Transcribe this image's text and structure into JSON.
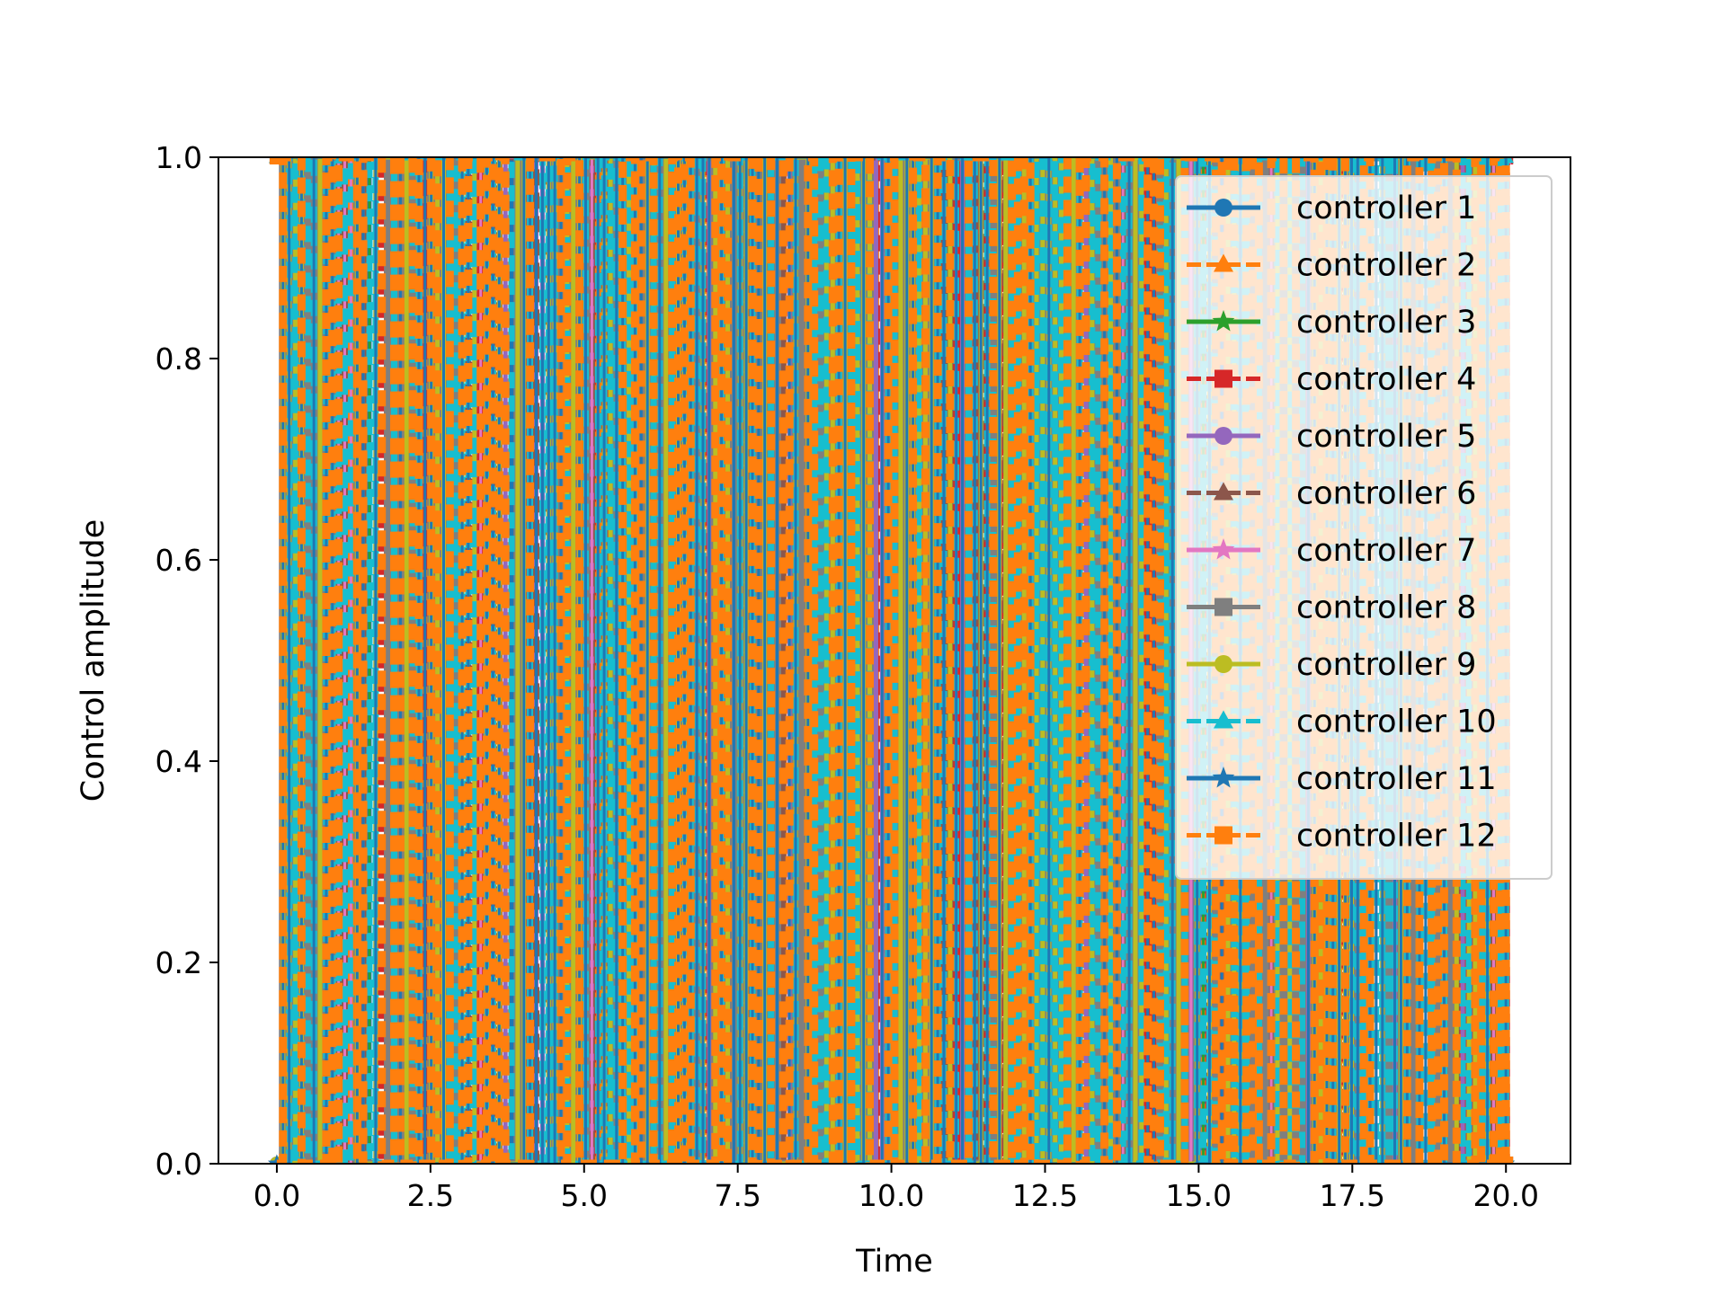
{
  "chart_data": {
    "type": "line",
    "title": "",
    "xlabel": "Time",
    "ylabel": "Control amplitude",
    "xlim": [
      -0.95,
      21.05
    ],
    "ylim": [
      0.0,
      1.0
    ],
    "xticks": [
      0.0,
      2.5,
      5.0,
      7.5,
      10.0,
      12.5,
      15.0,
      17.5,
      20.0
    ],
    "xtick_labels": [
      "0.0",
      "2.5",
      "5.0",
      "7.5",
      "10.0",
      "12.5",
      "15.0",
      "17.5",
      "20.0"
    ],
    "yticks": [
      0.0,
      0.2,
      0.4,
      0.6,
      0.8,
      1.0
    ],
    "ytick_labels": [
      "0.0",
      "0.2",
      "0.4",
      "0.6",
      "0.8",
      "1.0"
    ],
    "grid": false,
    "legend_position": "upper-right",
    "x_range": [
      0.0,
      20.0
    ],
    "sample_count": 200,
    "description": "",
    "series": [
      {
        "name": "controller 1",
        "color": "#1f77b4",
        "marker": "circle",
        "linestyle": "solid"
      },
      {
        "name": "controller 2",
        "color": "#ff7f0e",
        "marker": "triangle",
        "linestyle": "dashed"
      },
      {
        "name": "controller 3",
        "color": "#2ca02c",
        "marker": "star",
        "linestyle": "solid"
      },
      {
        "name": "controller 4",
        "color": "#d62728",
        "marker": "square",
        "linestyle": "dashed"
      },
      {
        "name": "controller 5",
        "color": "#9467bd",
        "marker": "circle",
        "linestyle": "solid"
      },
      {
        "name": "controller 6",
        "color": "#8c564b",
        "marker": "triangle",
        "linestyle": "dashed"
      },
      {
        "name": "controller 7",
        "color": "#e377c2",
        "marker": "star",
        "linestyle": "solid"
      },
      {
        "name": "controller 8",
        "color": "#7f7f7f",
        "marker": "square",
        "linestyle": "solid"
      },
      {
        "name": "controller 9",
        "color": "#bcbd22",
        "marker": "circle",
        "linestyle": "solid"
      },
      {
        "name": "controller 10",
        "color": "#17becf",
        "marker": "triangle",
        "linestyle": "dashed"
      },
      {
        "name": "controller 11",
        "color": "#1f77b4",
        "marker": "star",
        "linestyle": "solid"
      },
      {
        "name": "controller 12",
        "color": "#ff7f0e",
        "marker": "square",
        "linestyle": "dashed"
      }
    ]
  }
}
